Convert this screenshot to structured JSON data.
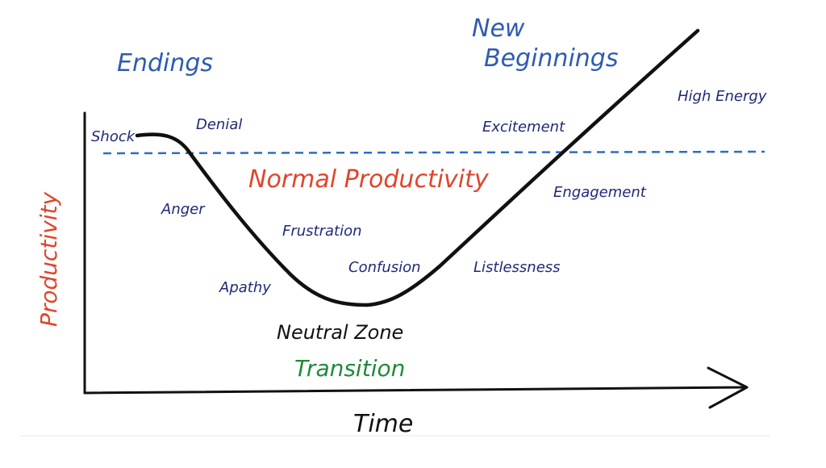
{
  "diagram": {
    "stages": {
      "endings": "Endings",
      "new_beginnings_line1": "New",
      "new_beginnings_line2": "Beginnings"
    },
    "emotions": {
      "shock": "Shock",
      "denial": "Denial",
      "anger": "Anger",
      "frustration": "Frustration",
      "apathy": "Apathy",
      "confusion": "Confusion",
      "listlessness": "Listlessness",
      "engagement": "Engagement",
      "excitement": "Excitement",
      "high_energy": "High Energy"
    },
    "reference_line_label": "Normal Productivity",
    "zone_label": "Neutral Zone",
    "phase_label": "Transition",
    "axes": {
      "x_label": "Time",
      "y_label": "Productivity"
    },
    "colors": {
      "stage_blue": "#2e5bb0",
      "emotion_navy": "#1f2a78",
      "productivity_red": "#e0452b",
      "transition_green": "#1f8a3a",
      "curve_black": "#111111",
      "dashed_line_blue": "#2e6cc0"
    }
  }
}
